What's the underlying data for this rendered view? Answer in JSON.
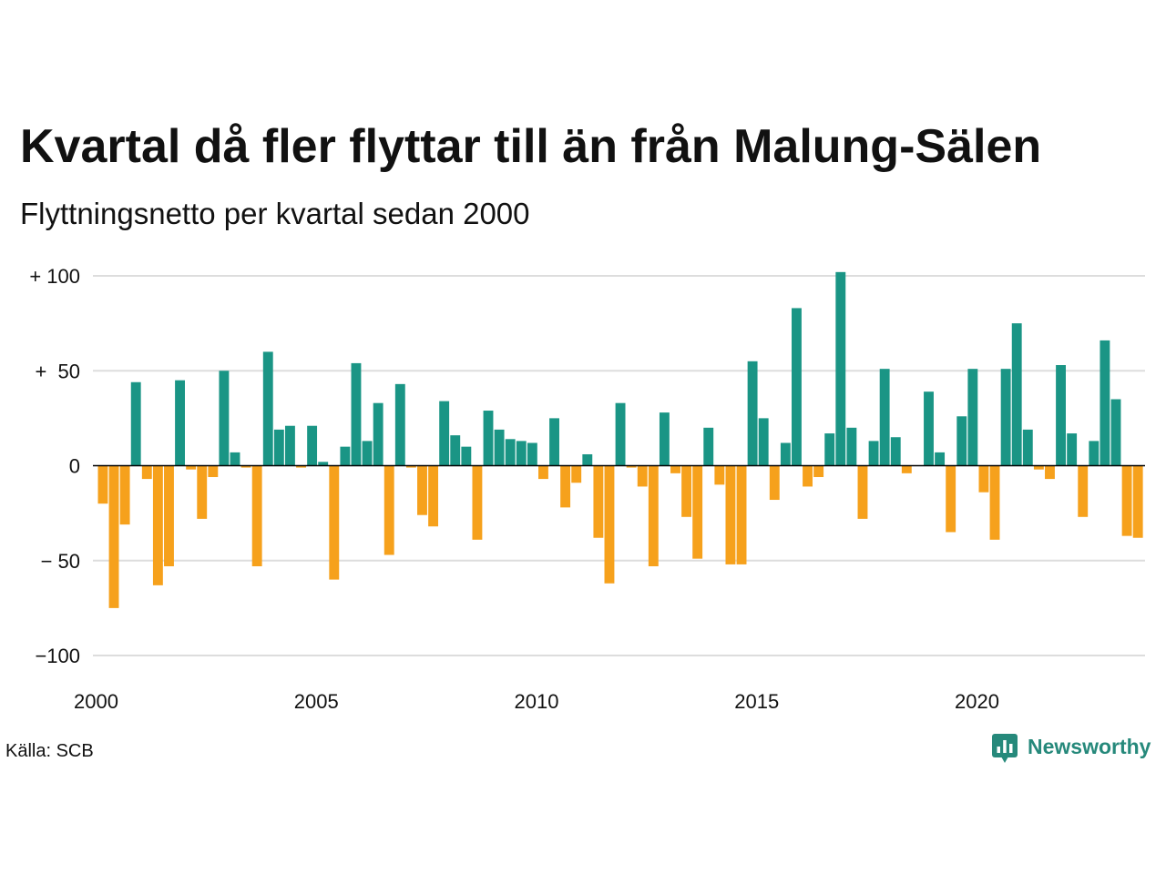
{
  "source": "Källa: SCB",
  "logo": {
    "text": "Newsworthy",
    "icon": "newsworthy-chart-bubble-icon",
    "color": "#26897b"
  },
  "colors": {
    "positive": "#1a9585",
    "negative": "#f6a11c",
    "grid": "#dddddd",
    "zero_line": "#000000"
  },
  "chart_data": {
    "type": "bar",
    "title": "Kvartal då fler flyttar till än från Malung-Sälen",
    "subtitle": "Flyttningsnetto per kvartal sedan 2000",
    "ylim": [
      -100,
      100
    ],
    "y_ticks": [
      100,
      50,
      0,
      -50,
      -100
    ],
    "y_tick_labels": [
      "+ 100",
      "+  50",
      "0",
      "− 50",
      "−100"
    ],
    "x_tick_labels": [
      "2000",
      "2005",
      "2010",
      "2015",
      "2020"
    ],
    "grid": true,
    "x": [
      "2000-Q1",
      "2000-Q2",
      "2000-Q3",
      "2000-Q4",
      "2001-Q1",
      "2001-Q2",
      "2001-Q3",
      "2001-Q4",
      "2002-Q1",
      "2002-Q2",
      "2002-Q3",
      "2002-Q4",
      "2003-Q1",
      "2003-Q2",
      "2003-Q3",
      "2003-Q4",
      "2004-Q1",
      "2004-Q2",
      "2004-Q3",
      "2004-Q4",
      "2005-Q1",
      "2005-Q2",
      "2005-Q3",
      "2005-Q4",
      "2006-Q1",
      "2006-Q2",
      "2006-Q3",
      "2006-Q4",
      "2007-Q1",
      "2007-Q2",
      "2007-Q3",
      "2007-Q4",
      "2008-Q1",
      "2008-Q2",
      "2008-Q3",
      "2008-Q4",
      "2009-Q1",
      "2009-Q2",
      "2009-Q3",
      "2009-Q4",
      "2010-Q1",
      "2010-Q2",
      "2010-Q3",
      "2010-Q4",
      "2011-Q1",
      "2011-Q2",
      "2011-Q3",
      "2011-Q4",
      "2012-Q1",
      "2012-Q2",
      "2012-Q3",
      "2012-Q4",
      "2013-Q1",
      "2013-Q2",
      "2013-Q3",
      "2013-Q4",
      "2014-Q1",
      "2014-Q2",
      "2014-Q3",
      "2014-Q4",
      "2015-Q1",
      "2015-Q2",
      "2015-Q3",
      "2015-Q4",
      "2016-Q1",
      "2016-Q2",
      "2016-Q3",
      "2016-Q4",
      "2017-Q1",
      "2017-Q2",
      "2017-Q3",
      "2017-Q4",
      "2018-Q1",
      "2018-Q2",
      "2018-Q3",
      "2018-Q4",
      "2019-Q1",
      "2019-Q2",
      "2019-Q3",
      "2019-Q4",
      "2020-Q1",
      "2020-Q2",
      "2020-Q3",
      "2020-Q4",
      "2021-Q1",
      "2021-Q2",
      "2021-Q3",
      "2021-Q4",
      "2022-Q1",
      "2022-Q2",
      "2022-Q3",
      "2022-Q4",
      "2023-Q1",
      "2023-Q2",
      "2023-Q3"
    ],
    "values": [
      -20,
      -75,
      -31,
      44,
      -7,
      -63,
      -53,
      45,
      -2,
      -28,
      -6,
      50,
      7,
      -1,
      -53,
      60,
      19,
      21,
      -1,
      21,
      2,
      -60,
      10,
      54,
      13,
      33,
      -47,
      43,
      -1,
      -26,
      -32,
      34,
      16,
      10,
      -39,
      29,
      19,
      14,
      13,
      12,
      -7,
      25,
      -22,
      -9,
      6,
      -38,
      -62,
      33,
      -1,
      -11,
      -53,
      28,
      -4,
      -27,
      -49,
      20,
      -10,
      -52,
      -52,
      55,
      25,
      -18,
      12,
      83,
      -11,
      -6,
      17,
      102,
      20,
      -28,
      13,
      51,
      15,
      -4,
      0,
      39,
      7,
      -35,
      26,
      51,
      -14,
      -39,
      51,
      75,
      19,
      -2,
      -7,
      53,
      17,
      -27,
      13,
      66,
      35,
      -37,
      -38
    ]
  }
}
